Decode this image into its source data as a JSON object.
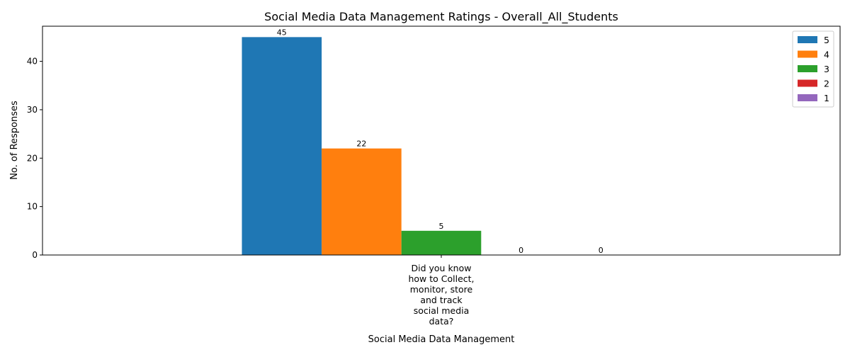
{
  "chart_data": {
    "type": "bar",
    "title": "Social Media Data Management Ratings - Overall_All_Students",
    "xlabel": "Social Media Data Management",
    "ylabel": "No. of Responses",
    "categories": [
      "Did you know how to Collect, monitor, store and track social media data?"
    ],
    "category_label_lines": [
      "Did you know",
      "how to Collect,",
      "monitor, store",
      "and track",
      "social media",
      "data?"
    ],
    "series": [
      {
        "name": "5",
        "values": [
          45
        ],
        "color": "#1f77b4"
      },
      {
        "name": "4",
        "values": [
          22
        ],
        "color": "#ff7f0e"
      },
      {
        "name": "3",
        "values": [
          5
        ],
        "color": "#2ca02c"
      },
      {
        "name": "2",
        "values": [
          0
        ],
        "color": "#d62728"
      },
      {
        "name": "1",
        "values": [
          0
        ],
        "color": "#9467bd"
      }
    ],
    "ylim": [
      0,
      47.25
    ],
    "yticks": [
      0,
      10,
      20,
      30,
      40
    ],
    "grid": false,
    "legend_position": "top-right"
  }
}
